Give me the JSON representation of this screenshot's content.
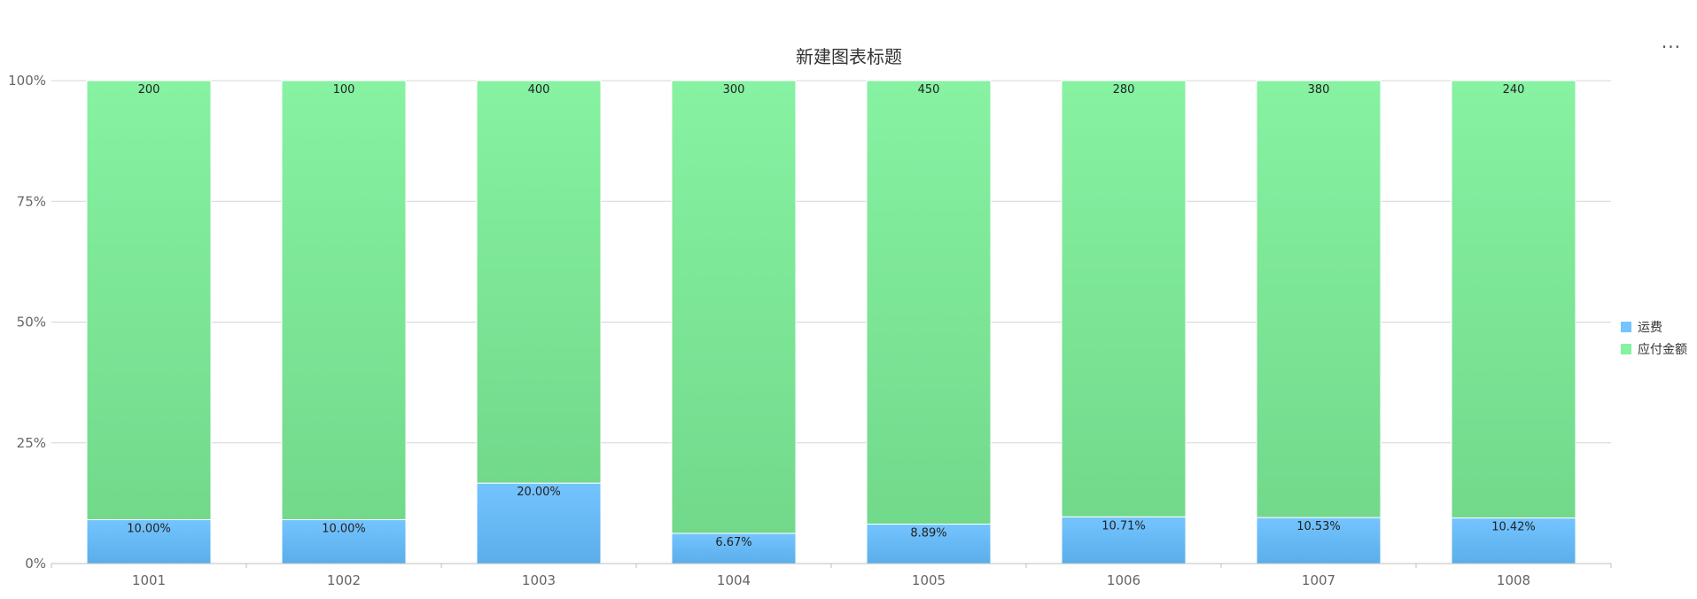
{
  "chart_data": {
    "type": "bar",
    "stacked": true,
    "normalized": true,
    "title": "新建图表标题",
    "categories": [
      "1001",
      "1002",
      "1003",
      "1004",
      "1005",
      "1006",
      "1007",
      "1008"
    ],
    "series": [
      {
        "name": "运费",
        "values": [
          20,
          10,
          80,
          20,
          40,
          30,
          40,
          25
        ],
        "labels": [
          "10.00%",
          "10.00%",
          "20.00%",
          "6.67%",
          "8.89%",
          "10.71%",
          "10.53%",
          "10.42%"
        ],
        "color_top": "#74c4ff",
        "color_bottom": "#5aaeea"
      },
      {
        "name": "应付金额",
        "values": [
          200,
          100,
          400,
          300,
          450,
          280,
          380,
          240
        ],
        "labels": [
          "200",
          "100",
          "400",
          "300",
          "450",
          "280",
          "380",
          "240"
        ],
        "color_top": "#86f2a2",
        "color_bottom": "#72d98b"
      }
    ],
    "y_ticks": [
      "0%",
      "25%",
      "50%",
      "75%",
      "100%"
    ],
    "ylim": [
      0,
      1
    ],
    "grid": true,
    "legend_position": "right"
  },
  "ui": {
    "more_menu_icon": "ellipsis-icon",
    "more_menu_label": "···"
  }
}
